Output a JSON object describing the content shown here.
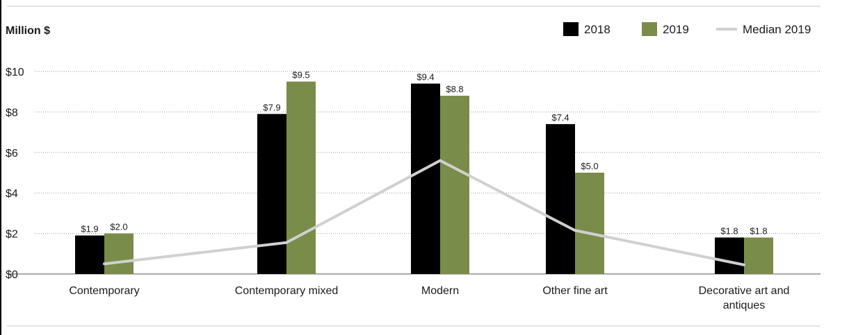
{
  "chart_data": {
    "type": "bar",
    "ylabel": "Million $",
    "categories": [
      [
        "Contemporary"
      ],
      [
        "Contemporary mixed"
      ],
      [
        "Modern"
      ],
      [
        "Other fine art"
      ],
      [
        "Decorative art and",
        "antiques"
      ]
    ],
    "series": [
      {
        "name": "2018",
        "values": [
          1.9,
          7.9,
          9.4,
          7.4,
          1.8
        ],
        "labels": [
          "$1.9",
          "$7.9",
          "$9.4",
          "$7.4",
          "$1.8"
        ],
        "color": "#000000"
      },
      {
        "name": "2019",
        "values": [
          2.0,
          9.5,
          8.8,
          5.0,
          1.8
        ],
        "labels": [
          "$2.0",
          "$9.5",
          "$8.8",
          "$5.0",
          "$1.8"
        ],
        "color": "#7a8c4a"
      }
    ],
    "line": {
      "name": "Median 2019",
      "values": [
        0.5,
        1.55,
        5.6,
        2.15,
        0.45
      ],
      "color": "#d0d0d0"
    },
    "yticks": [
      0,
      2,
      4,
      6,
      8,
      10
    ],
    "ytick_labels": [
      "$0",
      "$2",
      "$4",
      "$6",
      "$8",
      "$10"
    ],
    "ylim": [
      0,
      10
    ],
    "grid": true,
    "legend_position": "top-right"
  }
}
